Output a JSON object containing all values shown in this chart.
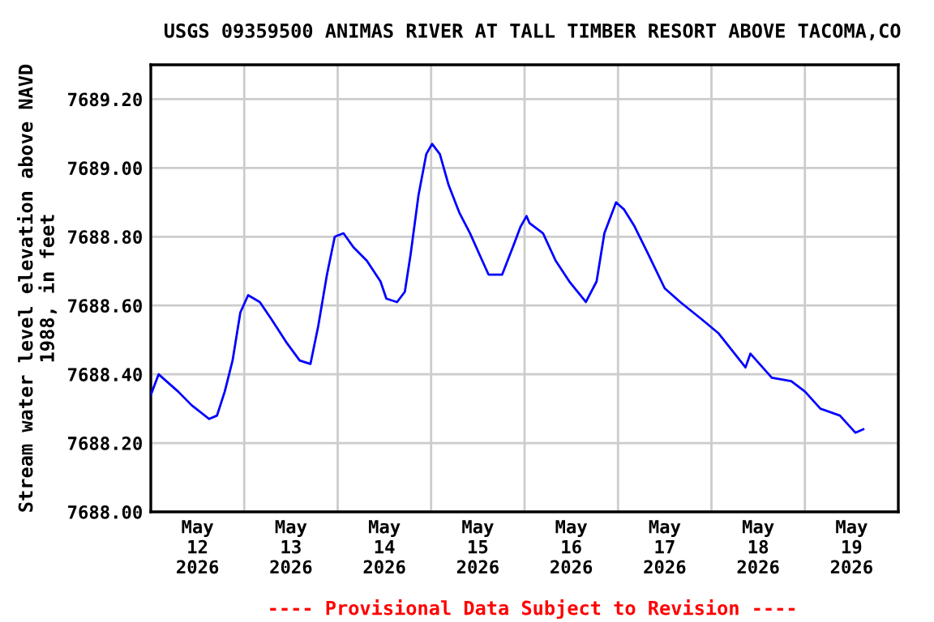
{
  "chart_data": {
    "type": "line",
    "title": "USGS 09359500 ANIMAS RIVER AT TALL TIMBER RESORT ABOVE TACOMA,CO",
    "ylabel": "Stream water level elevation above NAVD\n1988, in feet",
    "annotations": [
      "---- Provisional Data Subject to Revision ----"
    ],
    "series": [
      {
        "color": "#0000ff",
        "x": [
          "2026-05-12T00:00",
          "2026-05-12T02:00",
          "2026-05-12T04:00",
          "2026-05-12T07:00",
          "2026-05-12T10:30",
          "2026-05-12T15:00",
          "2026-05-12T17:00",
          "2026-05-12T19:00",
          "2026-05-12T21:00",
          "2026-05-12T23:00",
          "2026-05-13T01:00",
          "2026-05-13T04:00",
          "2026-05-13T07:00",
          "2026-05-13T11:00",
          "2026-05-13T14:15",
          "2026-05-13T17:00",
          "2026-05-13T19:00",
          "2026-05-13T21:15",
          "2026-05-13T23:15",
          "2026-05-14T01:30",
          "2026-05-14T04:00",
          "2026-05-14T07:30",
          "2026-05-14T11:00",
          "2026-05-14T12:30",
          "2026-05-14T15:15",
          "2026-05-14T17:15",
          "2026-05-14T18:45",
          "2026-05-14T20:45",
          "2026-05-14T22:45",
          "2026-05-15T00:15",
          "2026-05-15T02:15",
          "2026-05-15T04:30",
          "2026-05-15T07:15",
          "2026-05-15T10:00",
          "2026-05-15T12:45",
          "2026-05-15T14:45",
          "2026-05-15T18:15",
          "2026-05-15T21:00",
          "2026-05-15T23:00",
          "2026-05-16T00:30",
          "2026-05-16T01:15",
          "2026-05-16T04:45",
          "2026-05-16T08:00",
          "2026-05-16T11:30",
          "2026-05-16T15:45",
          "2026-05-16T18:30",
          "2026-05-16T20:30",
          "2026-05-16T23:30",
          "2026-05-17T01:30",
          "2026-05-17T04:15",
          "2026-05-17T07:45",
          "2026-05-17T12:00",
          "2026-05-17T16:00",
          "2026-05-17T21:30",
          "2026-05-18T01:45",
          "2026-05-18T08:45",
          "2026-05-18T10:00",
          "2026-05-18T15:30",
          "2026-05-18T20:30",
          "2026-05-19T00:00",
          "2026-05-19T04:00",
          "2026-05-19T09:00",
          "2026-05-19T13:00",
          "2026-05-19T15:00"
        ],
        "values": [
          7688.34,
          7688.4,
          7688.38,
          7688.35,
          7688.31,
          7688.27,
          7688.28,
          7688.35,
          7688.44,
          7688.58,
          7688.63,
          7688.61,
          7688.56,
          7688.49,
          7688.44,
          7688.43,
          7688.54,
          7688.69,
          7688.8,
          7688.81,
          7688.77,
          7688.73,
          7688.67,
          7688.62,
          7688.61,
          7688.64,
          7688.75,
          7688.92,
          7689.04,
          7689.07,
          7689.04,
          7688.95,
          7688.87,
          7688.81,
          7688.74,
          7688.69,
          7688.69,
          7688.77,
          7688.83,
          7688.86,
          7688.84,
          7688.81,
          7688.73,
          7688.67,
          7688.61,
          7688.67,
          7688.81,
          7688.9,
          7688.88,
          7688.83,
          7688.75,
          7688.65,
          7688.61,
          7688.56,
          7688.52,
          7688.42,
          7688.46,
          7688.39,
          7688.38,
          7688.35,
          7688.3,
          7688.28,
          7688.23,
          7688.24
        ]
      }
    ],
    "xlim": [
      "2026-05-12T00:00",
      "2026-05-20T00:00"
    ],
    "xticks": [
      {
        "value": "2026-05-12T00:00",
        "label": null
      },
      {
        "value": "2026-05-12T12:00",
        "label": "May\n12\n2026"
      },
      {
        "value": "2026-05-13T00:00",
        "label": null
      },
      {
        "value": "2026-05-13T12:00",
        "label": "May\n13\n2026"
      },
      {
        "value": "2026-05-14T00:00",
        "label": null
      },
      {
        "value": "2026-05-14T12:00",
        "label": "May\n14\n2026"
      },
      {
        "value": "2026-05-15T00:00",
        "label": null
      },
      {
        "value": "2026-05-15T12:00",
        "label": "May\n15\n2026"
      },
      {
        "value": "2026-05-16T00:00",
        "label": null
      },
      {
        "value": "2026-05-16T12:00",
        "label": "May\n16\n2026"
      },
      {
        "value": "2026-05-17T00:00",
        "label": null
      },
      {
        "value": "2026-05-17T12:00",
        "label": "May\n17\n2026"
      },
      {
        "value": "2026-05-18T00:00",
        "label": null
      },
      {
        "value": "2026-05-18T12:00",
        "label": "May\n18\n2026"
      },
      {
        "value": "2026-05-19T00:00",
        "label": null
      },
      {
        "value": "2026-05-19T12:00",
        "label": "May\n19\n2026"
      },
      {
        "value": "2026-05-20T00:00",
        "label": null
      }
    ],
    "ylim": [
      7688.0,
      7689.3
    ],
    "yticks": [
      {
        "value": 7688.0,
        "label": "7688.00"
      },
      {
        "value": 7688.2,
        "label": "7688.20"
      },
      {
        "value": 7688.4,
        "label": "7688.40"
      },
      {
        "value": 7688.6,
        "label": "7688.60"
      },
      {
        "value": 7688.8,
        "label": "7688.80"
      },
      {
        "value": 7689.0,
        "label": "7689.00"
      },
      {
        "value": 7689.2,
        "label": "7689.20"
      }
    ],
    "grid": true,
    "legend": false
  }
}
